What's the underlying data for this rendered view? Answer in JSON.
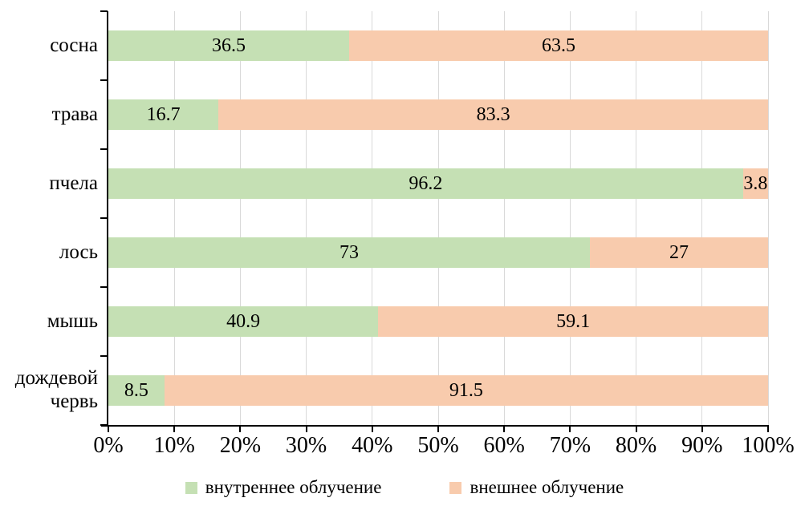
{
  "chart_data": {
    "type": "bar",
    "orientation": "horizontal",
    "stacked": true,
    "title": "",
    "xlabel": "",
    "ylabel": "",
    "categories": [
      "сосна",
      "трава",
      "пчела",
      "лось",
      "мышь",
      "дождевой червь"
    ],
    "series": [
      {
        "name": "внутреннее облучение",
        "color": "#c5e0b4",
        "values": [
          36.5,
          16.7,
          96.2,
          73,
          40.9,
          8.5
        ],
        "labels": [
          "36.5",
          "16.7",
          "96.2",
          "73",
          "40.9",
          "8.5"
        ]
      },
      {
        "name": "внешнее облучение",
        "color": "#f8cbad",
        "values": [
          63.5,
          83.3,
          3.8,
          27,
          59.1,
          91.5
        ],
        "labels": [
          "63.5",
          "83.3",
          "3.8",
          "27",
          "59.1",
          "91.5"
        ]
      }
    ],
    "x_ticks": [
      "0%",
      "10%",
      "20%",
      "30%",
      "40%",
      "50%",
      "60%",
      "70%",
      "80%",
      "90%",
      "100%"
    ],
    "xlim": [
      0,
      100
    ],
    "grid": "vertical-major",
    "gridline_color": "#d9d9d9",
    "axis_color": "#000000",
    "legend_position": "bottom"
  }
}
